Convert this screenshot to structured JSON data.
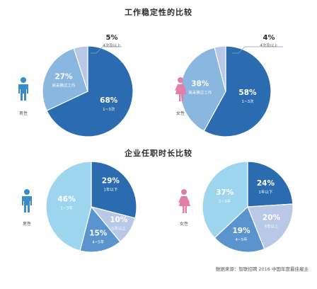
{
  "colors": {
    "dark": "#2b6cb0",
    "mid": "#5a94cf",
    "light": "#8ab7e0",
    "pale": "#b9c8e6",
    "sky": "#9dd4ee",
    "male_icon": "#3a8cc8",
    "female_icon": "#e27fa8",
    "label_text": "#2b2b2b"
  },
  "titles": {
    "stability": "工作稳定性的比较",
    "tenure": "企业任职时长比较"
  },
  "source": "数据来源：智联招聘 2016 中国年度最佳雇主",
  "genders": {
    "male": "男性",
    "female": "女性"
  },
  "chart_data": [
    {
      "type": "pie",
      "title": "工作稳定性的比较",
      "subtitle": "男性",
      "slices": [
        {
          "pct": "68%",
          "value": 68,
          "label": "1~3次",
          "color": "#2b6cb0"
        },
        {
          "pct": "27%",
          "value": 27,
          "label": "尚未换过工作",
          "color": "#8ab7e0"
        },
        {
          "pct": "5%",
          "value": 5,
          "label": "4次及以上",
          "color": "#b9c8e6"
        }
      ]
    },
    {
      "type": "pie",
      "title": "工作稳定性的比较",
      "subtitle": "女性",
      "slices": [
        {
          "pct": "58%",
          "value": 58,
          "label": "1~3次",
          "color": "#2b6cb0"
        },
        {
          "pct": "38%",
          "value": 38,
          "label": "尚未换过工作",
          "color": "#8ab7e0"
        },
        {
          "pct": "4%",
          "value": 4,
          "label": "4次及以上",
          "color": "#b9c8e6"
        }
      ]
    },
    {
      "type": "pie",
      "title": "企业任职时长比较",
      "subtitle": "男性",
      "slices": [
        {
          "pct": "29%",
          "value": 29,
          "label": "1年以下",
          "color": "#2b6cb0"
        },
        {
          "pct": "10%",
          "value": 10,
          "label": "5年以上",
          "color": "#b9c8e6"
        },
        {
          "pct": "15%",
          "value": 15,
          "label": "4~5年",
          "color": "#5a94cf"
        },
        {
          "pct": "46%",
          "value": 46,
          "label": "1~3年",
          "color": "#9dd4ee"
        }
      ]
    },
    {
      "type": "pie",
      "title": "企业任职时长比较",
      "subtitle": "女性",
      "slices": [
        {
          "pct": "24%",
          "value": 24,
          "label": "1年以下",
          "color": "#2b6cb0"
        },
        {
          "pct": "20%",
          "value": 20,
          "label": "5年以上",
          "color": "#b9c8e6"
        },
        {
          "pct": "19%",
          "value": 19,
          "label": "4~5年",
          "color": "#5a94cf"
        },
        {
          "pct": "37%",
          "value": 37,
          "label": "1~3年",
          "color": "#9dd4ee"
        }
      ]
    }
  ]
}
